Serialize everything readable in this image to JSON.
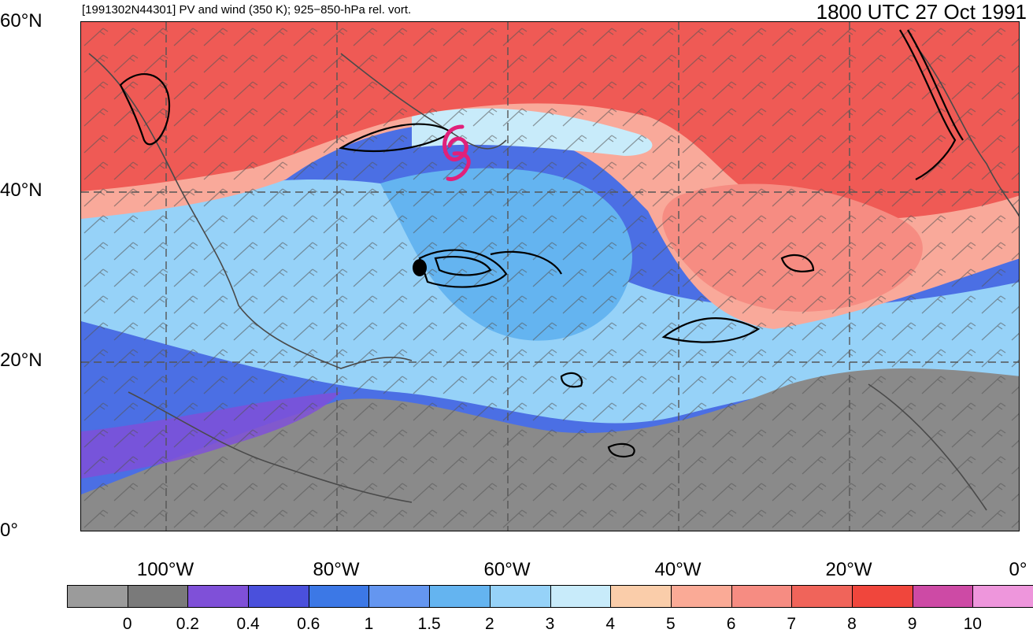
{
  "header": {
    "left_title": "[1991302N44301] PV and wind (350 K); 925−850-hPa rel. vort.",
    "right_title": "1800 UTC 27 Oct 1991"
  },
  "axes": {
    "lat_labels": [
      "60°N",
      "40°N",
      "20°N",
      "0°"
    ],
    "lon_labels": [
      "100°W",
      "80°W",
      "60°W",
      "40°W",
      "20°W",
      "0°"
    ]
  },
  "storm_symbol": {
    "glyph": "tropical-cyclone-icon",
    "color": "#e0207a"
  },
  "colorbar": {
    "labels": [
      "0",
      "0.2",
      "0.4",
      "0.6",
      "1",
      "1.5",
      "2",
      "3",
      "4",
      "5",
      "6",
      "7",
      "8",
      "9",
      "10"
    ],
    "colors": [
      "#9b9b9b",
      "#7a7a7a",
      "#7f50d8",
      "#4a50dc",
      "#3c78e6",
      "#6496f0",
      "#64b4f0",
      "#96d2f8",
      "#c8ebfa",
      "#facdaa",
      "#faaa96",
      "#f68c82",
      "#f0645a",
      "#f0463c",
      "#cd4aa5",
      "#ee96dc"
    ]
  },
  "map_colors": {
    "high_pv": "#ef5a55",
    "mid_pv": "#f9a99a",
    "low_pv": "#9fd3f6",
    "tropics": "#4b6fe4",
    "land_gray": "#8a8a8a",
    "contour": "#000000",
    "coast": "#555555",
    "grid": "#555555"
  }
}
